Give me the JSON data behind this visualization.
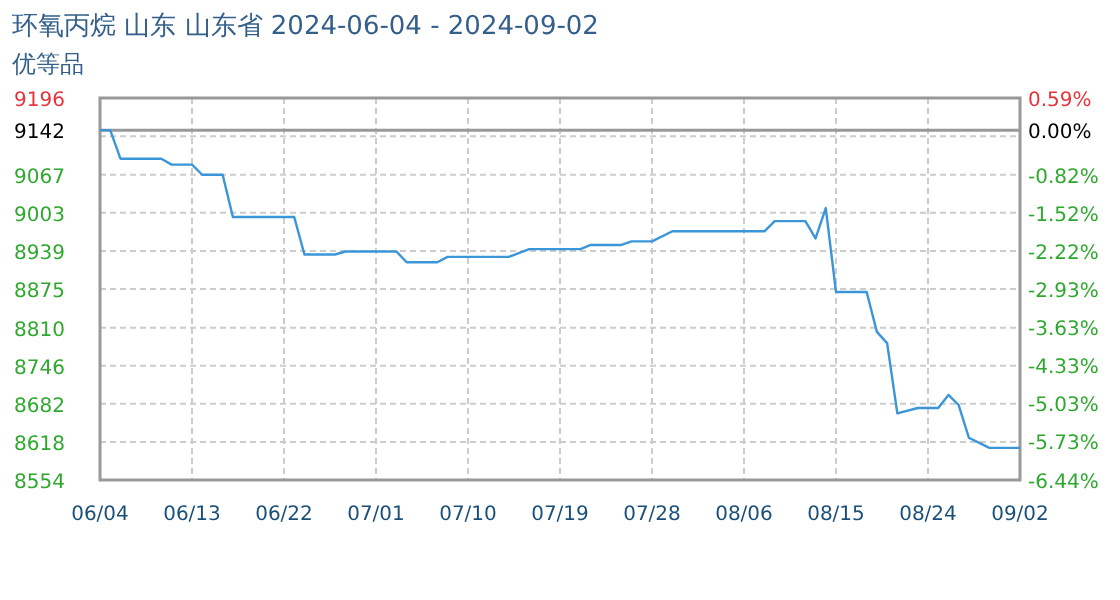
{
  "chart_data": {
    "type": "line",
    "title": "环氧丙烷 山东 山东省 2024-06-04 - 2024-09-02",
    "subtitle": "优等品",
    "x": [
      "2024-06-04",
      "2024-06-05",
      "2024-06-06",
      "2024-06-10",
      "2024-06-11",
      "2024-06-13",
      "2024-06-14",
      "2024-06-16",
      "2024-06-17",
      "2024-06-23",
      "2024-06-24",
      "2024-06-27",
      "2024-06-28",
      "2024-07-03",
      "2024-07-04",
      "2024-07-07",
      "2024-07-08",
      "2024-07-14",
      "2024-07-16",
      "2024-07-21",
      "2024-07-22",
      "2024-07-25",
      "2024-07-26",
      "2024-07-28",
      "2024-07-30",
      "2024-08-08",
      "2024-08-09",
      "2024-08-12",
      "2024-08-13",
      "2024-08-14",
      "2024-08-15",
      "2024-08-18",
      "2024-08-19",
      "2024-08-20",
      "2024-08-21",
      "2024-08-23",
      "2024-08-25",
      "2024-08-26",
      "2024-08-27",
      "2024-08-28",
      "2024-08-30",
      "2024-09-02"
    ],
    "series": [
      {
        "color": "#3a96d8",
        "values": [
          9142,
          9142,
          9094,
          9094,
          9084,
          9084,
          9067,
          9067,
          8996,
          8996,
          8933,
          8933,
          8938,
          8938,
          8920,
          8920,
          8929,
          8929,
          8942,
          8942,
          8949,
          8949,
          8955,
          8955,
          8972,
          8972,
          8989,
          8989,
          8960,
          9011,
          8870,
          8870,
          8803,
          8784,
          8666,
          8675,
          8675,
          8697,
          8680,
          8625,
          8608,
          8608
        ]
      }
    ],
    "xlim": [
      "2024-06-04",
      "2024-09-02"
    ],
    "xticks": [
      {
        "value": "2024-06-04",
        "label": "06/04"
      },
      {
        "value": "2024-06-13",
        "label": "06/13"
      },
      {
        "value": "2024-06-22",
        "label": "06/22"
      },
      {
        "value": "2024-07-01",
        "label": "07/01"
      },
      {
        "value": "2024-07-10",
        "label": "07/10"
      },
      {
        "value": "2024-07-19",
        "label": "07/19"
      },
      {
        "value": "2024-07-28",
        "label": "07/28"
      },
      {
        "value": "2024-08-06",
        "label": "08/06"
      },
      {
        "value": "2024-08-15",
        "label": "08/15"
      },
      {
        "value": "2024-08-24",
        "label": "08/24"
      },
      {
        "value": "2024-09-02",
        "label": "09/02"
      }
    ],
    "ylim": [
      8554,
      9196
    ],
    "yticks": [
      9196,
      9142,
      {
        "value": 9131.8,
        "label": null
      },
      9067,
      9003,
      8939,
      8875,
      8810,
      8746,
      8682,
      8618,
      8554
    ],
    "y2lim": [
      -6.44,
      0.59
    ],
    "y2ticks": [
      {
        "value": 0.59,
        "label": "0.59%"
      },
      {
        "value": 0,
        "label": "0.00%"
      },
      {
        "value": -0.82,
        "label": "-0.82%"
      },
      {
        "value": -1.52,
        "label": "-1.52%"
      },
      {
        "value": -2.22,
        "label": "-2.22%"
      },
      {
        "value": -2.93,
        "label": "-2.93%"
      },
      {
        "value": -3.63,
        "label": "-3.63%"
      },
      {
        "value": -4.33,
        "label": "-4.33%"
      },
      {
        "value": -5.03,
        "label": "-5.03%"
      },
      {
        "value": -5.73,
        "label": "-5.73%"
      },
      {
        "value": -6.44,
        "label": "-6.44%"
      }
    ],
    "ref_lines": [
      {
        "axis": "y",
        "value": 9142,
        "color": "#999999"
      }
    ],
    "grid": true,
    "marker": "none",
    "line_style": "solid"
  }
}
